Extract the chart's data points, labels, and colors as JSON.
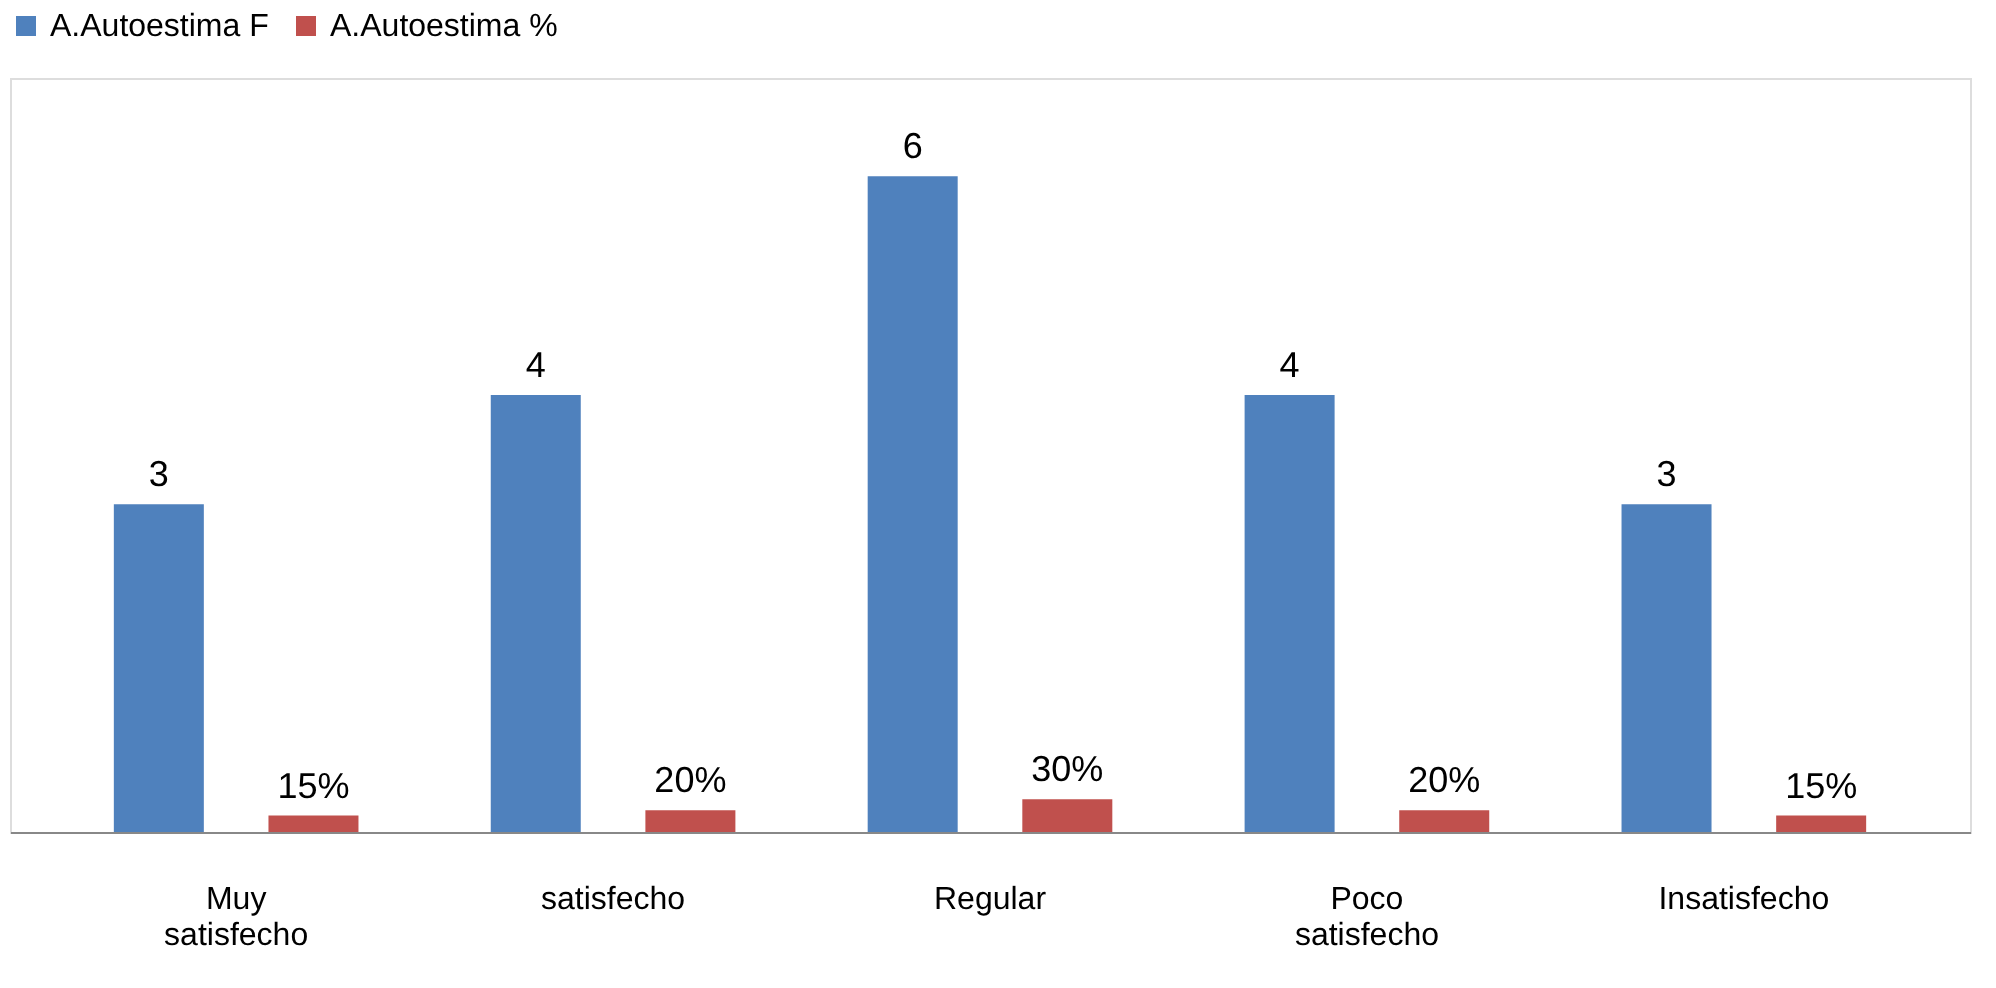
{
  "chart_data": {
    "type": "bar",
    "categories": [
      "Muy satisfecho",
      "satisfecho",
      "Regular",
      "Poco satisfecho",
      "Insatisfecho"
    ],
    "legend": "top",
    "series": [
      {
        "name": "A.Autoestima F",
        "color": "#4f81bd",
        "values": [
          3,
          4,
          6,
          4,
          3
        ],
        "value_labels": [
          "3",
          "4",
          "6",
          "4",
          "3"
        ]
      },
      {
        "name": "A.Autoestima %",
        "color": "#c0504d",
        "values": [
          0.15,
          0.2,
          0.3,
          0.2,
          0.15
        ],
        "value_labels": [
          "15%",
          "20%",
          "30%",
          "20%",
          "15%"
        ]
      }
    ]
  }
}
